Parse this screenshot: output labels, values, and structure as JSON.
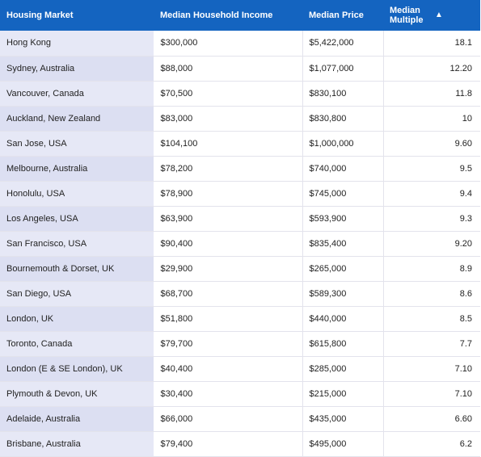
{
  "table": {
    "headers": {
      "market": "Housing Market",
      "income": "Median Household Income",
      "price": "Median Price",
      "multiple": "Median Multiple",
      "sort_indicator": "▲"
    },
    "rows": [
      {
        "market": "Hong Kong",
        "income": "$300,000",
        "price": "$5,422,000",
        "multiple": "18.1"
      },
      {
        "market": "Sydney, Australia",
        "income": "$88,000",
        "price": "$1,077,000",
        "multiple": "12.20"
      },
      {
        "market": "Vancouver, Canada",
        "income": "$70,500",
        "price": "$830,100",
        "multiple": "11.8"
      },
      {
        "market": "Auckland, New Zealand",
        "income": "$83,000",
        "price": "$830,800",
        "multiple": "10"
      },
      {
        "market": "San Jose, USA",
        "income": "$104,100",
        "price": "$1,000,000",
        "multiple": "9.60"
      },
      {
        "market": "Melbourne, Australia",
        "income": "$78,200",
        "price": "$740,000",
        "multiple": "9.5"
      },
      {
        "market": "Honolulu, USA",
        "income": "$78,900",
        "price": "$745,000",
        "multiple": "9.4"
      },
      {
        "market": "Los Angeles, USA",
        "income": "$63,900",
        "price": "$593,900",
        "multiple": "9.3"
      },
      {
        "market": "San Francisco, USA",
        "income": "$90,400",
        "price": "$835,400",
        "multiple": "9.20"
      },
      {
        "market": "Bournemouth & Dorset, UK",
        "income": "$29,900",
        "price": "$265,000",
        "multiple": "8.9"
      },
      {
        "market": "San Diego, USA",
        "income": "$68,700",
        "price": "$589,300",
        "multiple": "8.6"
      },
      {
        "market": "London, UK",
        "income": "$51,800",
        "price": "$440,000",
        "multiple": "8.5"
      },
      {
        "market": "Toronto, Canada",
        "income": "$79,700",
        "price": "$615,800",
        "multiple": "7.7"
      },
      {
        "market": "London (E & SE London), UK",
        "income": "$40,400",
        "price": "$285,000",
        "multiple": "7.10"
      },
      {
        "market": "Plymouth & Devon, UK",
        "income": "$30,400",
        "price": "$215,000",
        "multiple": "7.10"
      },
      {
        "market": "Adelaide, Australia",
        "income": "$66,000",
        "price": "$435,000",
        "multiple": "6.60"
      },
      {
        "market": "Brisbane, Australia",
        "income": "$79,400",
        "price": "$495,000",
        "multiple": "6.2"
      }
    ]
  },
  "colors": {
    "header_bg": "#1464c0",
    "market_cell_bg": "#e6e8f6",
    "market_cell_bg_alt": "#dcdff2"
  }
}
